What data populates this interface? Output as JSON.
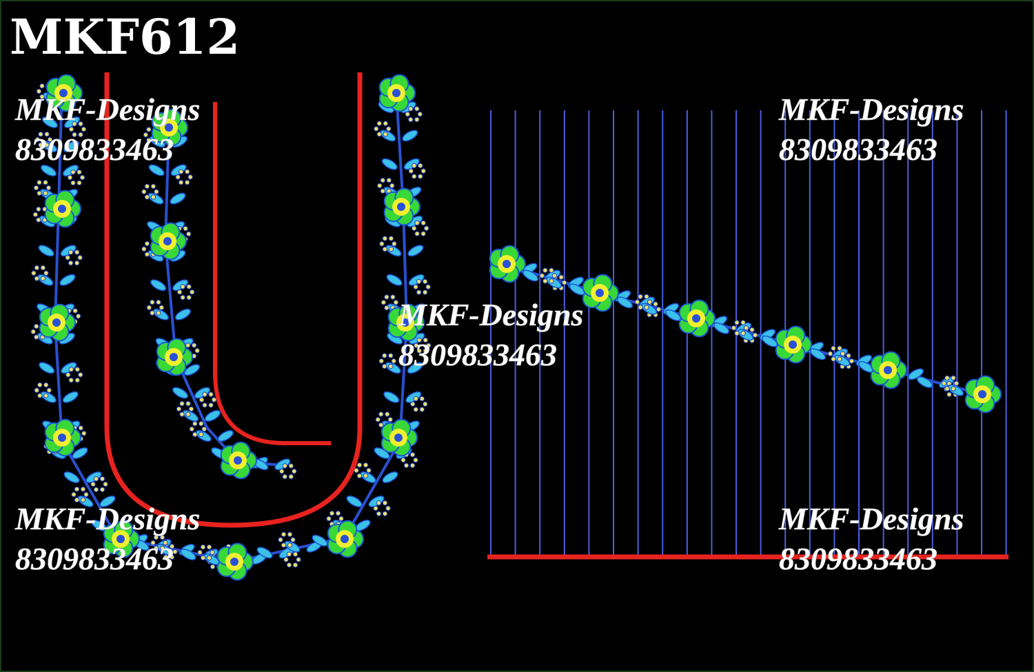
{
  "title": "MKF612",
  "watermarks": [
    {
      "name": "MKF-Designs",
      "phone": "8309833463"
    },
    {
      "name": "MKF-Designs",
      "phone": "8309833463"
    },
    {
      "name": "MKF-Designs",
      "phone": "8309833463"
    },
    {
      "name": "MKF-Designs",
      "phone": "8309833463"
    },
    {
      "name": "MKF-Designs",
      "phone": "8309833463"
    }
  ]
}
